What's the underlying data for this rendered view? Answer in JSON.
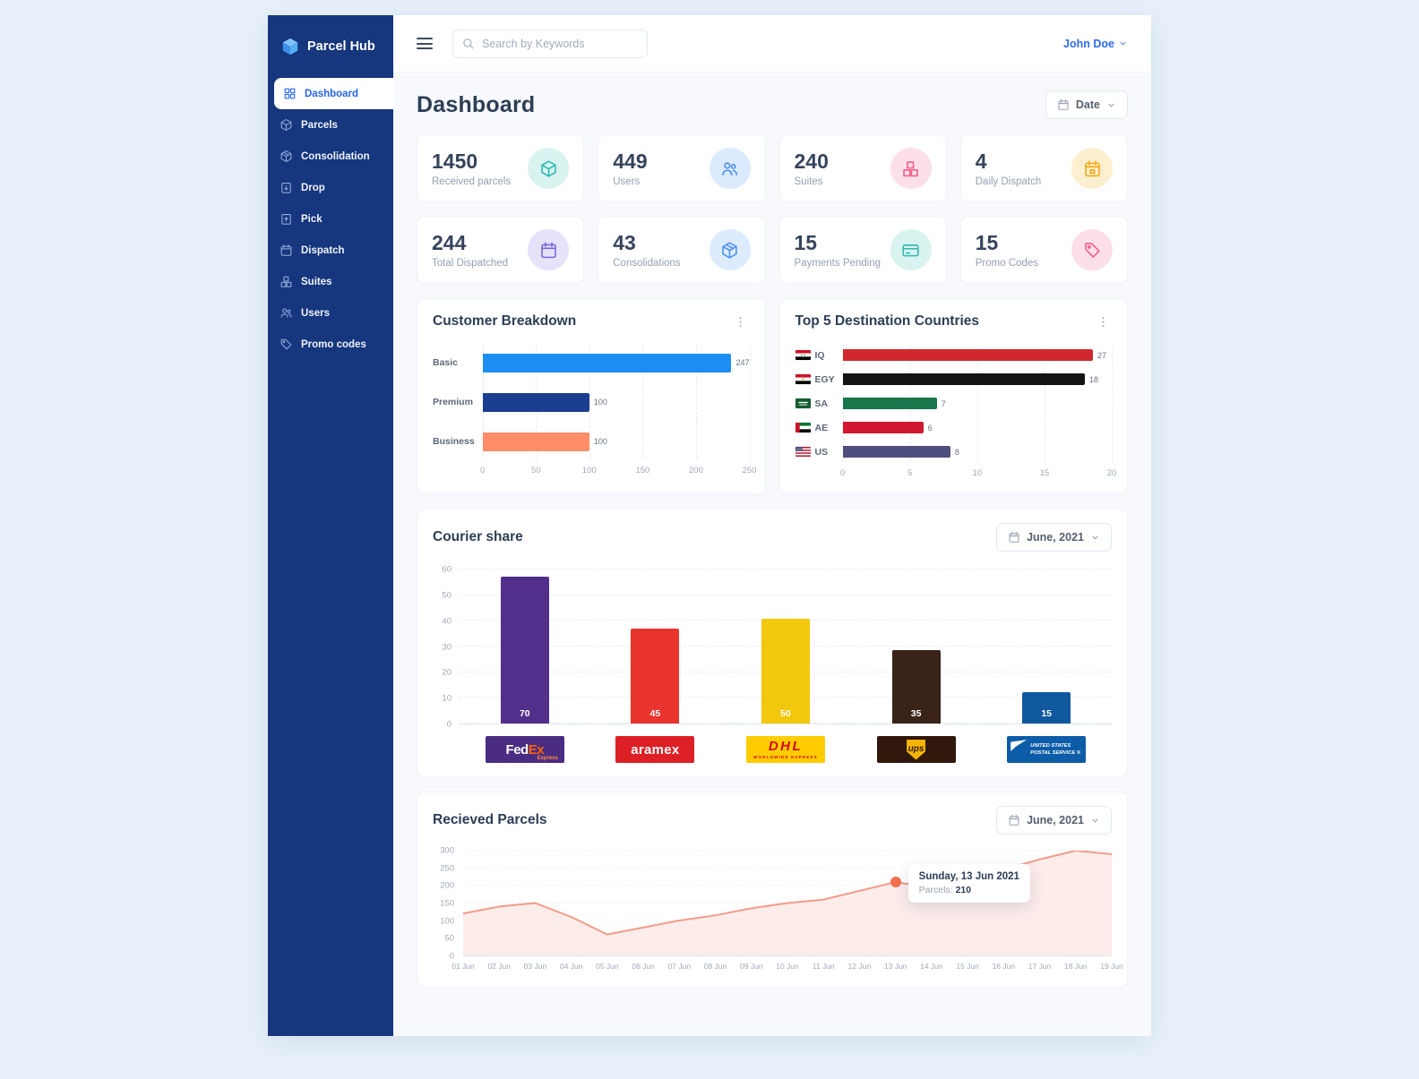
{
  "brand": {
    "name": "Parcel Hub"
  },
  "topbar": {
    "search_placeholder": "Search by Keywords",
    "user_name": "John Doe"
  },
  "sidebar": {
    "items": [
      {
        "label": "Dashboard",
        "icon": "grid",
        "active": true
      },
      {
        "label": "Parcels",
        "icon": "cube",
        "active": false
      },
      {
        "label": "Consolidation",
        "icon": "cubes",
        "active": false
      },
      {
        "label": "Drop",
        "icon": "clipboard-down",
        "active": false
      },
      {
        "label": "Pick",
        "icon": "clipboard-up",
        "active": false
      },
      {
        "label": "Dispatch",
        "icon": "calendar",
        "active": false
      },
      {
        "label": "Suites",
        "icon": "boxes",
        "active": false
      },
      {
        "label": "Users",
        "icon": "users",
        "active": false
      },
      {
        "label": "Promo codes",
        "icon": "tag",
        "active": false
      }
    ]
  },
  "page": {
    "title": "Dashboard",
    "date_filter_label": "Date"
  },
  "stats": [
    {
      "value": "1450",
      "label": "Received parcels",
      "icon": "cube",
      "fg": "#31b9ae",
      "bg": "#d8f3f0"
    },
    {
      "value": "449",
      "label": "Users",
      "icon": "users",
      "fg": "#4c8bf5",
      "bg": "#dbeafd"
    },
    {
      "value": "240",
      "label": "Suites",
      "icon": "boxes",
      "fg": "#f25c85",
      "bg": "#fcdfe8"
    },
    {
      "value": "4",
      "label": "Daily Dispatch",
      "icon": "calendar-box",
      "fg": "#f3a712",
      "bg": "#fcefcf"
    },
    {
      "value": "244",
      "label": "Total Dispatched",
      "icon": "calendar",
      "fg": "#7a66dc",
      "bg": "#e6e2fa"
    },
    {
      "value": "43",
      "label": "Consolidations",
      "icon": "cubes",
      "fg": "#5192f0",
      "bg": "#dcebfd"
    },
    {
      "value": "15",
      "label": "Payments Pending",
      "icon": "card",
      "fg": "#31b9ae",
      "bg": "#d8f3f0"
    },
    {
      "value": "15",
      "label": "Promo Codes",
      "icon": "tag",
      "fg": "#f25c85",
      "bg": "#fcdfe8"
    }
  ],
  "chart_data": [
    {
      "type": "bar",
      "orientation": "horizontal",
      "title": "Customer Breakdown",
      "categories": [
        "Basic",
        "Premium",
        "Business"
      ],
      "values": [
        247,
        100,
        100
      ],
      "colors": [
        "#1d8ef1",
        "#1c3e90",
        "#ff8e68"
      ],
      "xticks": [
        0,
        50,
        100,
        150,
        200,
        250
      ],
      "xlim": [
        0,
        250
      ],
      "grid": "dashed-vertical",
      "legend": "none"
    },
    {
      "type": "bar",
      "orientation": "horizontal",
      "title": "Top 5 Destination Countries",
      "categories": [
        "IQ",
        "EGY",
        "SA",
        "AE",
        "US"
      ],
      "flag_codes": [
        "iq",
        "eg",
        "sa",
        "ae",
        "us"
      ],
      "values": [
        27,
        18,
        7,
        6,
        8
      ],
      "colors": [
        "#d0282e",
        "#141414",
        "#17774a",
        "#d01931",
        "#4e4e7f"
      ],
      "xticks": [
        0,
        5,
        10,
        15,
        20
      ],
      "xlim": [
        0,
        20
      ],
      "grid": "dashed-vertical",
      "legend": "none"
    },
    {
      "type": "bar",
      "orientation": "vertical",
      "title": "Courier share",
      "period": "June, 2021",
      "categories": [
        "FedEx",
        "aramex",
        "DHL",
        "UPS",
        "USPS"
      ],
      "values": [
        70,
        45,
        50,
        35,
        15
      ],
      "colors": [
        "#512f8a",
        "#e8342c",
        "#f3c70c",
        "#3a241a",
        "#11599f"
      ],
      "yticks": [
        0,
        10,
        20,
        30,
        40,
        50,
        60
      ],
      "ylim": [
        0,
        60
      ],
      "grid": "dashed-horizontal",
      "legend": "none",
      "logos": [
        {
          "type": "fedex",
          "parts": [
            "Fed",
            "Ex"
          ],
          "sub": "Express"
        },
        {
          "type": "aramex",
          "text": "aramex"
        },
        {
          "type": "dhl",
          "text": "DHL",
          "sub": "WORLDWIDE EXPRESS"
        },
        {
          "type": "ups",
          "text": "ups"
        },
        {
          "type": "usps",
          "lines": [
            "UNITED STATES",
            "POSTAL SERVICE ®"
          ]
        }
      ]
    },
    {
      "type": "area",
      "title": "Recieved Parcels",
      "period": "June, 2021",
      "x": [
        "01 Jun",
        "02 Jun",
        "03 Jun",
        "04 Jun",
        "05 Jun",
        "06 Jun",
        "07 Jun",
        "08 Jun",
        "09 Jun",
        "10 Jun",
        "11 Jun",
        "12 Jun",
        "13 Jun",
        "14 Jun",
        "15 Jun",
        "16 Jun",
        "17 Jun",
        "18 Jun",
        "19 Jun"
      ],
      "values": [
        120,
        140,
        150,
        110,
        60,
        80,
        100,
        115,
        135,
        150,
        160,
        185,
        210,
        195,
        220,
        245,
        275,
        300,
        290
      ],
      "yticks": [
        0,
        50,
        100,
        150,
        200,
        250,
        300
      ],
      "ylim": [
        0,
        300
      ],
      "line_color": "#f59a88",
      "fill_color": "#fbe4de",
      "dot_color": "#f2704e",
      "tooltip": {
        "title": "Sunday, 13 Jun 2021",
        "label": "Parcels:",
        "value": "210",
        "x_index": 12
      }
    }
  ]
}
